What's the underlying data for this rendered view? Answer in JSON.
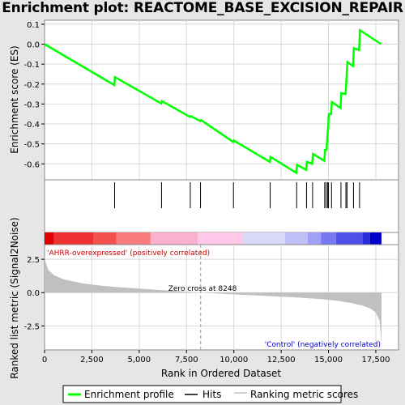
{
  "title": "Enrichment plot: REACTOME_BASE_EXCISION_REPAIR",
  "chart_data": [
    {
      "type": "line",
      "ylabel": "Enrichment score (ES)",
      "xlim": [
        0,
        18700
      ],
      "ylim": [
        -0.68,
        0.12
      ],
      "yticks": [
        0.1,
        0.0,
        -0.1,
        -0.2,
        -0.3,
        -0.4,
        -0.5,
        -0.6
      ],
      "ytick_labels": [
        "0.1",
        "0.0",
        "-0.1",
        "-0.2",
        "-0.3",
        "-0.4",
        "-0.5",
        "-0.6"
      ],
      "series": [
        {
          "name": "Enrichment profile",
          "color": "#00ff00",
          "x": [
            0,
            3680,
            3720,
            6160,
            6200,
            7680,
            7720,
            8220,
            8260,
            9960,
            10000,
            11900,
            11940,
            13300,
            13340,
            13820,
            13860,
            14140,
            14180,
            14780,
            14820,
            14900,
            14940,
            14980,
            15020,
            15140,
            15180,
            15640,
            15680,
            15900,
            15940,
            15960,
            16000,
            16300,
            16340,
            16620,
            16660,
            17780
          ],
          "y": [
            0.0,
            -0.205,
            -0.165,
            -0.297,
            -0.285,
            -0.365,
            -0.36,
            -0.385,
            -0.38,
            -0.49,
            -0.483,
            -0.59,
            -0.565,
            -0.645,
            -0.605,
            -0.63,
            -0.59,
            -0.6,
            -0.55,
            -0.585,
            -0.53,
            -0.53,
            -0.47,
            -0.42,
            -0.35,
            -0.35,
            -0.29,
            -0.32,
            -0.245,
            -0.25,
            -0.2,
            -0.15,
            -0.09,
            -0.11,
            -0.02,
            -0.03,
            0.07,
            0.0
          ]
        }
      ]
    },
    {
      "type": "table",
      "name": "Hits",
      "hit_positions": [
        3700,
        6180,
        7700,
        8240,
        9980,
        11920,
        13320,
        13840,
        14160,
        14800,
        14880,
        14960,
        15000,
        15160,
        15660,
        15920,
        15980,
        16320,
        16640
      ]
    },
    {
      "type": "heatmap",
      "colors": [
        "#e00000",
        "#ee3030",
        "#f55050",
        "#f77b7b",
        "#fbb0d0",
        "#ffc8e8",
        "#d8d8f8",
        "#c0c0f8",
        "#a0a0f8",
        "#7878f4",
        "#5050e8",
        "#2a2ad8",
        "#0000c8"
      ],
      "band_starts": [
        0,
        500,
        2600,
        3800,
        5600,
        8100,
        10500,
        12700,
        13900,
        14600,
        15400,
        16800,
        17200,
        17800
      ],
      "label_left": "'AHRR-overexpressed' (positively correlated)",
      "label_right": "'Control' (negatively correlated)"
    },
    {
      "type": "area",
      "ylabel": "Ranked list metric (Signal2Noise)",
      "xlabel": "Rank in Ordered Dataset",
      "ylim": [
        -4.3,
        3.6
      ],
      "xticks": [
        0,
        2500,
        5000,
        7500,
        10000,
        12500,
        15000,
        17500
      ],
      "xtick_labels": [
        "0",
        "2,500",
        "5,000",
        "7,500",
        "10,000",
        "12,500",
        "15,000",
        "17,500"
      ],
      "yticks": [
        2.5,
        0.0,
        -2.5
      ],
      "ytick_labels": [
        "2.5",
        "0.0",
        "-2.5"
      ],
      "x": [
        0,
        50,
        200,
        500,
        1000,
        2000,
        3000,
        4000,
        5000,
        6000,
        7000,
        8248,
        9500,
        11000,
        12500,
        13500,
        14500,
        15500,
        16200,
        16800,
        17200,
        17500,
        17700,
        17780,
        17800
      ],
      "y": [
        2.9,
        2.3,
        1.7,
        1.3,
        1.0,
        0.7,
        0.52,
        0.4,
        0.3,
        0.2,
        0.11,
        0.0,
        -0.1,
        -0.2,
        -0.3,
        -0.38,
        -0.48,
        -0.62,
        -0.78,
        -0.97,
        -1.18,
        -1.5,
        -2.1,
        -3.4,
        -4.2
      ],
      "annotation": "Zero cross at 8248",
      "zero_cross": 8248
    }
  ],
  "legend": {
    "items": [
      {
        "label": "Enrichment profile",
        "color": "#00ff00"
      },
      {
        "label": "Hits",
        "color": "#000000"
      },
      {
        "label": "Ranking metric scores",
        "color": "#c0c0c0"
      }
    ]
  }
}
